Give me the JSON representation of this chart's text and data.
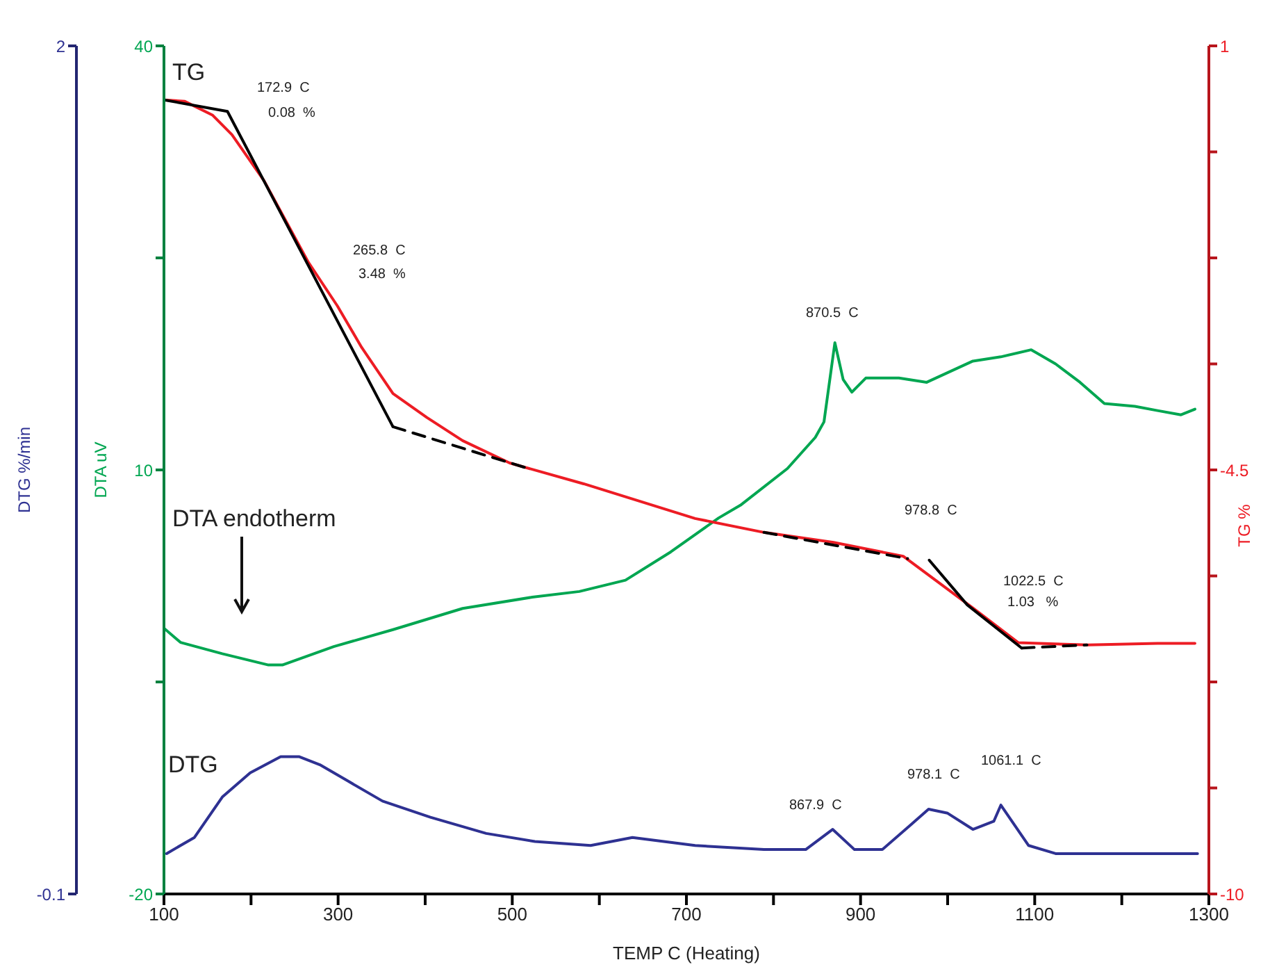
{
  "chart_data": {
    "type": "line",
    "xlabel": "TEMP  C   (Heating)",
    "ylabel": "DTA uV",
    "y2label": "TG %",
    "y3label": "DTG  %/min",
    "xlim": [
      100,
      1300
    ],
    "xticks": [
      100,
      {
        "value": 200,
        "label": null
      },
      300,
      {
        "value": 400,
        "label": null
      },
      500,
      {
        "value": 600,
        "label": null
      },
      700,
      {
        "value": 800,
        "label": null
      },
      900,
      {
        "value": 1000,
        "label": null
      },
      1100,
      {
        "value": 1200,
        "label": null
      },
      1300
    ],
    "ylim": [
      -20,
      40
    ],
    "yticks": [
      -20,
      {
        "value": -5,
        "label": null
      },
      10,
      {
        "value": 25,
        "label": null
      },
      40
    ],
    "y2lim": [
      -10,
      1
    ],
    "y2ticks": [
      -10,
      {
        "value": -8.625,
        "label": null
      },
      {
        "value": -7.25,
        "label": null
      },
      {
        "value": -5.875,
        "label": null
      },
      -4.5,
      {
        "value": -3.125,
        "label": null
      },
      {
        "value": -1.75,
        "label": null
      },
      {
        "value": -0.375,
        "label": null
      },
      1
    ],
    "y3lim": [
      -0.1,
      2
    ],
    "y3ticks": [
      -0.1,
      2
    ],
    "marker": "none",
    "line_style": "solid",
    "series": [
      {
        "color": "#00a651",
        "x": [
          100,
          119,
          167,
          220,
          236,
          295,
          363,
          443,
          523,
          577,
          630,
          682,
          737,
          762,
          816,
          848,
          858,
          870.5,
          880,
          890,
          906,
          944,
          976,
          1029,
          1061,
          1096,
          1124,
          1152,
          1180,
          1215,
          1241,
          1268,
          1284
        ],
        "values": [
          -1.2,
          -2.2,
          -3.0,
          -3.8,
          -3.8,
          -2.5,
          -1.3,
          0.2,
          1.0,
          1.4,
          2.2,
          4.2,
          6.6,
          7.5,
          10.1,
          12.3,
          13.4,
          19.0,
          16.4,
          15.5,
          16.5,
          16.5,
          16.2,
          17.7,
          18.0,
          18.5,
          17.5,
          16.2,
          14.7,
          14.5,
          14.2,
          13.9,
          14.3
        ]
      },
      {
        "color": "#ed1c24",
        "axis": "y2",
        "x": [
          100,
          124,
          156,
          178,
          215,
          266,
          299,
          327,
          363,
          402,
          443,
          497,
          582,
          710,
          789,
          869,
          949,
          992,
          1029,
          1081,
          1161,
          1241,
          1284
        ],
        "values": [
          0.3,
          0.28,
          0.1,
          -0.15,
          -0.75,
          -1.81,
          -2.37,
          -2.91,
          -3.51,
          -3.82,
          -4.12,
          -4.41,
          -4.68,
          -5.13,
          -5.31,
          -5.44,
          -5.62,
          -5.98,
          -6.29,
          -6.74,
          -6.77,
          -6.75,
          -6.75
        ]
      },
      {
        "color": "#2e3192",
        "axis": "y3",
        "x": [
          103,
          135,
          167,
          199,
          234,
          255,
          279,
          311,
          351,
          406,
          470,
          526,
          590,
          638,
          710,
          789,
          837,
          867.9,
          893,
          925,
          957,
          978.1,
          1000,
          1029,
          1053,
          1061.1,
          1093,
          1124,
          1188,
          1236,
          1287
        ],
        "values": [
          0.0,
          0.04,
          0.14,
          0.2,
          0.24,
          0.24,
          0.22,
          0.18,
          0.13,
          0.09,
          0.05,
          0.03,
          0.02,
          0.04,
          0.02,
          0.01,
          0.01,
          0.06,
          0.01,
          0.01,
          0.07,
          0.11,
          0.1,
          0.06,
          0.08,
          0.12,
          0.02,
          0.0,
          0.0,
          0.0,
          0.0
        ]
      },
      {
        "color": "#000000",
        "axis": "y2",
        "x": [
          100,
          172.9,
          363
        ],
        "values": [
          0.3,
          0.15,
          -3.94
        ]
      },
      {
        "color": "#000000",
        "axis": "y2",
        "line_style": "dashed",
        "x": [
          363,
          518
        ],
        "values": [
          -3.94,
          -4.48
        ]
      },
      {
        "color": "#000000",
        "axis": "y2",
        "line_style": "dashed",
        "x": [
          789,
          954
        ],
        "values": [
          -5.31,
          -5.65
        ]
      },
      {
        "color": "#000000",
        "axis": "y2",
        "x": [
          978.8,
          1022.5,
          1085
        ],
        "values": [
          -5.67,
          -6.25,
          -6.81
        ]
      },
      {
        "color": "#000000",
        "axis": "y2",
        "line_style": "dashed",
        "x": [
          1085,
          1160
        ],
        "values": [
          -6.81,
          -6.77
        ]
      }
    ],
    "annotations": [
      "TG",
      "172.9  C",
      "0.08  %",
      "265.8  C",
      "3.48  %",
      "870.5  C",
      "978.8  C",
      "1022.5  C",
      "1.03   %",
      "DTA endotherm",
      "DTG",
      "867.9  C",
      "978.1  C",
      "1061.1  C"
    ]
  }
}
